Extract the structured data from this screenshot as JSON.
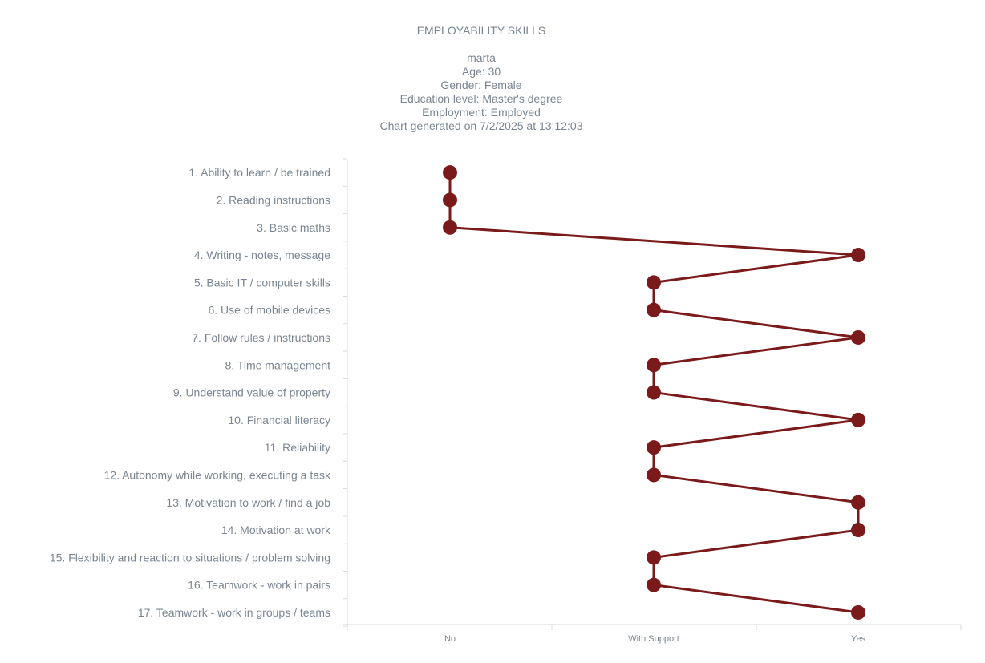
{
  "header": {
    "title": "EMPLOYABILITY SKILLS",
    "name": "marta",
    "age": "Age: 30",
    "gender": "Gender: Female",
    "education": "Education level: Master's degree",
    "employment": "Employment: Employed",
    "generated": "Chart generated on 7/2/2025 at 13:12:03"
  },
  "colors": {
    "series": "#7b1a1a",
    "axis": "#d5d9de",
    "text": "#7a8591"
  },
  "chart_data": {
    "type": "line",
    "orientation": "horizontal-categories",
    "title": "EMPLOYABILITY SKILLS",
    "x_categories": [
      "No",
      "With Support",
      "Yes"
    ],
    "categories": [
      "1. Ability to learn / be trained",
      "2. Reading instructions",
      "3. Basic maths",
      "4. Writing - notes, message",
      "5. Basic IT / computer skills",
      "6. Use of mobile devices",
      "7. Follow rules / instructions",
      "8. Time management",
      "9. Understand value of property",
      "10. Financial literacy",
      "11. Reliability",
      "12. Autonomy while working, executing a task",
      "13. Motivation to work / find a job",
      "14. Motivation at work",
      "15. Flexibility and reaction to situations / problem solving",
      "16. Teamwork - work in pairs",
      "17. Teamwork - work in groups / teams"
    ],
    "values": [
      "No",
      "No",
      "No",
      "Yes",
      "With Support",
      "With Support",
      "Yes",
      "With Support",
      "With Support",
      "Yes",
      "With Support",
      "With Support",
      "Yes",
      "Yes",
      "With Support",
      "With Support",
      "Yes"
    ],
    "grid": false,
    "legend": "none"
  }
}
